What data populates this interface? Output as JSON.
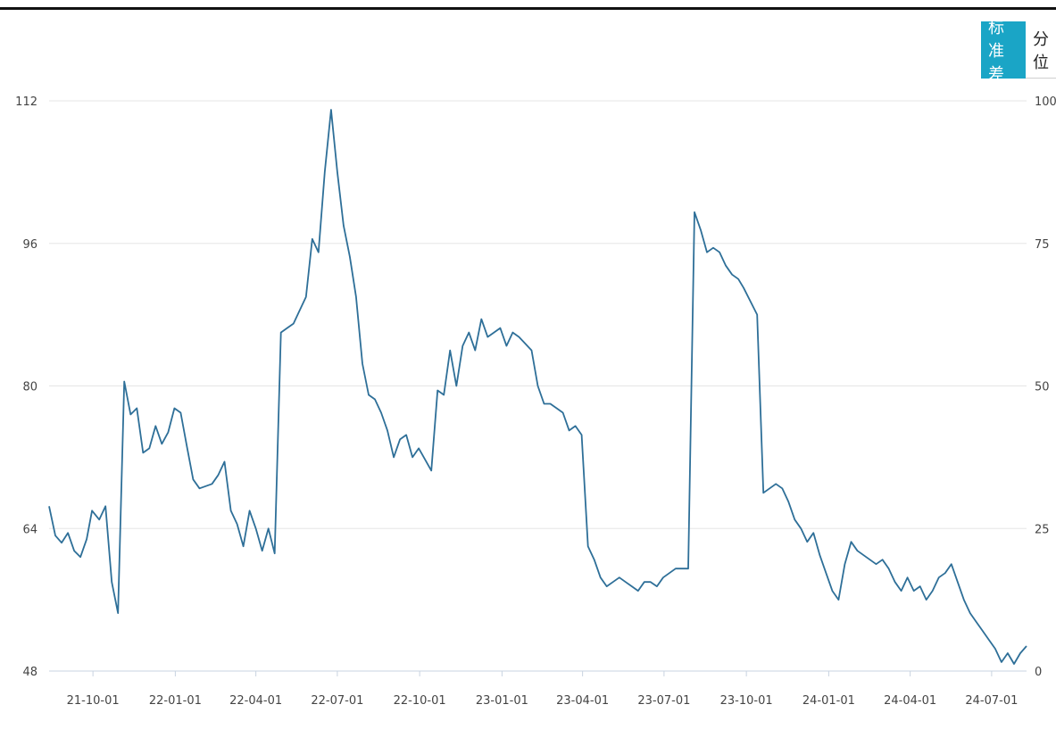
{
  "tabs": [
    {
      "label": "标准差",
      "active": true
    },
    {
      "label": "分位",
      "active": false
    }
  ],
  "colors": {
    "accent": "#1aa5c6",
    "line": "#2e6f98",
    "grid": "#e5e5e5",
    "axis": "#c8d3e0"
  },
  "chart_data": {
    "type": "line",
    "title": "",
    "xlabel": "",
    "ylabel": "",
    "ylim": [
      48,
      112
    ],
    "y2lim": [
      0,
      100
    ],
    "yticks": [
      48,
      64,
      80,
      96,
      112
    ],
    "y2ticks": [
      0,
      25,
      50,
      75,
      100
    ],
    "xticks": [
      "21-10-01",
      "22-01-01",
      "22-04-01",
      "22-07-01",
      "22-10-01",
      "23-01-01",
      "23-04-01",
      "23-07-01",
      "23-10-01",
      "24-01-01",
      "24-04-01",
      "24-07-01"
    ],
    "grid": true,
    "series": [
      {
        "x": [
          "2021-08-13",
          "2021-08-20",
          "2021-08-27",
          "2021-09-03",
          "2021-09-10",
          "2021-09-17",
          "2021-09-24",
          "2021-09-30",
          "2021-10-08",
          "2021-10-15",
          "2021-10-22",
          "2021-10-29",
          "2021-11-05",
          "2021-11-12",
          "2021-11-19",
          "2021-11-26",
          "2021-12-03",
          "2021-12-10",
          "2021-12-17",
          "2021-12-24",
          "2021-12-31",
          "2022-01-07",
          "2022-01-14",
          "2022-01-21",
          "2022-01-28",
          "2022-02-11",
          "2022-02-18",
          "2022-02-25",
          "2022-03-04",
          "2022-03-11",
          "2022-03-18",
          "2022-03-25",
          "2022-04-01",
          "2022-04-08",
          "2022-04-15",
          "2022-04-22",
          "2022-04-29",
          "2022-05-06",
          "2022-05-13",
          "2022-05-20",
          "2022-05-27",
          "2022-06-03",
          "2022-06-10",
          "2022-06-17",
          "2022-06-24",
          "2022-07-01",
          "2022-07-08",
          "2022-07-15",
          "2022-07-22",
          "2022-07-29",
          "2022-08-05",
          "2022-08-12",
          "2022-08-19",
          "2022-08-26",
          "2022-09-02",
          "2022-09-09",
          "2022-09-16",
          "2022-09-23",
          "2022-09-30",
          "2022-10-14",
          "2022-10-21",
          "2022-10-28",
          "2022-11-04",
          "2022-11-11",
          "2022-11-18",
          "2022-11-25",
          "2022-12-02",
          "2022-12-09",
          "2022-12-16",
          "2022-12-23",
          "2022-12-30",
          "2023-01-06",
          "2023-01-13",
          "2023-01-20",
          "2023-02-03",
          "2023-02-10",
          "2023-02-17",
          "2023-02-24",
          "2023-03-03",
          "2023-03-10",
          "2023-03-17",
          "2023-03-24",
          "2023-03-31",
          "2023-04-07",
          "2023-04-14",
          "2023-04-21",
          "2023-04-28",
          "2023-05-05",
          "2023-05-12",
          "2023-05-19",
          "2023-05-26",
          "2023-06-02",
          "2023-06-09",
          "2023-06-16",
          "2023-06-23",
          "2023-06-30",
          "2023-07-07",
          "2023-07-14",
          "2023-07-21",
          "2023-07-28",
          "2023-08-04",
          "2023-08-11",
          "2023-08-18",
          "2023-08-25",
          "2023-09-01",
          "2023-09-08",
          "2023-09-15",
          "2023-09-22",
          "2023-09-28",
          "2023-10-13",
          "2023-10-20",
          "2023-10-27",
          "2023-11-03",
          "2023-11-10",
          "2023-11-17",
          "2023-11-24",
          "2023-12-01",
          "2023-12-08",
          "2023-12-15",
          "2023-12-22",
          "2023-12-29",
          "2024-01-05",
          "2024-01-12",
          "2024-01-19",
          "2024-01-26",
          "2024-02-02",
          "2024-02-09",
          "2024-02-23",
          "2024-03-01",
          "2024-03-08",
          "2024-03-15",
          "2024-03-22",
          "2024-03-29",
          "2024-04-05",
          "2024-04-12",
          "2024-04-19",
          "2024-04-26",
          "2024-05-03",
          "2024-05-10",
          "2024-05-17",
          "2024-05-24",
          "2024-05-31",
          "2024-06-07",
          "2024-06-14",
          "2024-06-21",
          "2024-06-28",
          "2024-07-05",
          "2024-07-12",
          "2024-07-19",
          "2024-07-26",
          "2024-08-02",
          "2024-08-09"
        ],
        "values": [
          66.5,
          63.2,
          62.4,
          63.5,
          61.5,
          60.8,
          62.8,
          66.0,
          65.0,
          66.5,
          58.0,
          54.5,
          80.5,
          76.8,
          77.5,
          72.5,
          73.0,
          75.5,
          73.5,
          74.8,
          77.5,
          77.0,
          73.2,
          69.5,
          68.5,
          69.0,
          70.0,
          71.5,
          66.0,
          64.5,
          62.0,
          66.0,
          64.0,
          61.5,
          64.0,
          61.2,
          86.0,
          86.5,
          87.0,
          88.5,
          90.0,
          96.5,
          95.0,
          104.0,
          111.0,
          104.0,
          98.0,
          94.5,
          90.0,
          82.5,
          79.0,
          78.5,
          77.0,
          75.0,
          72.0,
          74.0,
          74.5,
          72.0,
          73.0,
          70.5,
          79.5,
          79.0,
          84.0,
          80.0,
          84.5,
          86.0,
          84.0,
          87.5,
          85.5,
          86.0,
          86.5,
          84.5,
          86.0,
          85.5,
          84.0,
          80.0,
          78.0,
          78.0,
          77.5,
          77.0,
          75.0,
          75.5,
          74.5,
          62.0,
          60.5,
          58.5,
          57.5,
          58.0,
          58.5,
          58.0,
          57.5,
          57.0,
          58.0,
          58.0,
          57.5,
          58.5,
          59.0,
          59.5,
          59.5,
          59.5,
          99.5,
          97.5,
          95.0,
          95.5,
          95.0,
          93.5,
          92.5,
          92.0,
          91.0,
          88.0,
          68.0,
          68.5,
          69.0,
          68.5,
          67.0,
          65.0,
          64.0,
          62.5,
          63.5,
          61.0,
          59.0,
          57.0,
          56.0,
          60.0,
          62.5,
          61.5,
          61.0,
          60.0,
          60.5,
          59.5,
          58.0,
          57.0,
          58.5,
          57.0,
          57.5,
          56.0,
          57.0,
          58.5,
          59.0,
          60.0,
          58.0,
          56.0,
          54.5,
          53.5,
          52.5,
          51.5,
          50.5,
          49.0,
          50.0,
          48.8,
          50.0,
          50.8
        ]
      }
    ]
  }
}
